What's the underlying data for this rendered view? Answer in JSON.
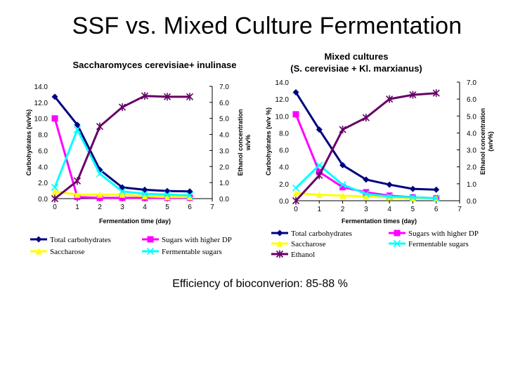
{
  "slide": {
    "title": "SSF vs. Mixed Culture Fermentation",
    "footer": "Efficiency of bioconverion: 85-88 %"
  },
  "colors": {
    "total_carbohydrates": "#000080",
    "sugars_higher_dp": "#ff00ff",
    "saccharose": "#ffff00",
    "fermentable_sugars": "#00ffff",
    "ethanol": "#660066"
  },
  "chart_data": [
    {
      "type": "line",
      "title": "Saccharomyces cerevisiae+ inulinase",
      "xlabel": "Fermentation time (day)",
      "ylabel_left": "Carbohydrates (w/v%)",
      "ylabel_right": "Ethanol concentration w/v%",
      "x_ticks": [
        "0",
        "1",
        "2",
        "3",
        "4",
        "5",
        "6",
        "7"
      ],
      "y_left_ticks": [
        "0.0",
        "2.0",
        "4.0",
        "6.0",
        "8.0",
        "10.0",
        "12.0",
        "14.0"
      ],
      "y_right_ticks": [
        "0.0",
        "1.0",
        "2.0",
        "3.0",
        "4.0",
        "5.0",
        "6.0",
        "7.0"
      ],
      "xlim": [
        0,
        7
      ],
      "y_left_lim": [
        0,
        14
      ],
      "y_right_lim": [
        0,
        7
      ],
      "legend_position": "bottom",
      "legend": [
        "Total carbohydrates",
        "Sugars with higher DP",
        "Saccharose",
        "Fermentable sugars"
      ],
      "series": [
        {
          "name": "Total carbohydrates",
          "axis": "left",
          "marker": "diamond",
          "x": [
            0,
            1,
            2,
            3,
            4,
            5,
            6
          ],
          "y": [
            12.7,
            9.2,
            3.6,
            1.4,
            1.1,
            0.95,
            0.9
          ]
        },
        {
          "name": "Sugars with higher DP",
          "axis": "left",
          "marker": "square",
          "x": [
            0,
            1,
            2,
            3,
            4,
            5,
            6
          ],
          "y": [
            10.0,
            0.2,
            0.1,
            0.1,
            0.1,
            0.1,
            0.1
          ]
        },
        {
          "name": "Saccharose",
          "axis": "left",
          "marker": "triangle",
          "x": [
            0,
            1,
            2,
            3,
            4,
            5,
            6
          ],
          "y": [
            0.9,
            0.5,
            0.5,
            0.5,
            0.3,
            0.2,
            0.2
          ]
        },
        {
          "name": "Fermentable sugars",
          "axis": "left",
          "marker": "x",
          "x": [
            0,
            1,
            2,
            3,
            4,
            5,
            6
          ],
          "y": [
            1.4,
            8.6,
            3.1,
            0.9,
            0.6,
            0.5,
            0.4
          ]
        },
        {
          "name": "Ethanol",
          "axis": "right",
          "marker": "star",
          "x": [
            0,
            1,
            2,
            3,
            4,
            5,
            6
          ],
          "y": [
            0.0,
            1.1,
            4.5,
            5.7,
            6.4,
            6.35,
            6.35
          ]
        }
      ]
    },
    {
      "type": "line",
      "title": "Mixed cultures (S. cerevisiae + Kl. marxianus)",
      "xlabel": "Fermentation times (day)",
      "ylabel_left": "Carbohydrates (w/v %)",
      "ylabel_right": "Ethanol concentration (w/v%)",
      "x_ticks": [
        "0",
        "1",
        "2",
        "3",
        "4",
        "5",
        "6",
        "7"
      ],
      "y_left_ticks": [
        "0.0",
        "2.0",
        "4.0",
        "6.0",
        "8.0",
        "10.0",
        "12.0",
        "14.0"
      ],
      "y_right_ticks": [
        "0.0",
        "1.0",
        "2.0",
        "3.0",
        "4.0",
        "5.0",
        "6.0",
        "7.0"
      ],
      "xlim": [
        0,
        7
      ],
      "y_left_lim": [
        0,
        14
      ],
      "y_right_lim": [
        0,
        7
      ],
      "legend_position": "bottom",
      "legend": [
        "Total carbohydrates",
        "Sugars with higher DP",
        "Saccharose",
        "Fermentable sugars",
        "Ethanol"
      ],
      "series": [
        {
          "name": "Total carbohydrates",
          "axis": "left",
          "marker": "diamond",
          "x": [
            0,
            1,
            2,
            3,
            4,
            5,
            6
          ],
          "y": [
            12.8,
            8.4,
            4.2,
            2.5,
            1.9,
            1.4,
            1.3
          ]
        },
        {
          "name": "Sugars with higher DP",
          "axis": "left",
          "marker": "square",
          "x": [
            0,
            1,
            2,
            3,
            4,
            5,
            6
          ],
          "y": [
            10.2,
            3.4,
            1.6,
            1.0,
            0.6,
            0.4,
            0.3
          ]
        },
        {
          "name": "Saccharose",
          "axis": "left",
          "marker": "triangle",
          "x": [
            0,
            1,
            2,
            3,
            4,
            5,
            6
          ],
          "y": [
            0.9,
            0.7,
            0.6,
            0.5,
            0.4,
            0.3,
            0.3
          ]
        },
        {
          "name": "Fermentable sugars",
          "axis": "left",
          "marker": "x",
          "x": [
            0,
            1,
            2,
            3,
            4,
            5,
            6
          ],
          "y": [
            1.5,
            4.2,
            1.9,
            0.8,
            0.5,
            0.4,
            0.3
          ]
        },
        {
          "name": "Ethanol",
          "axis": "right",
          "marker": "star",
          "x": [
            0,
            1,
            2,
            3,
            4,
            5,
            6
          ],
          "y": [
            0.0,
            1.5,
            4.2,
            4.9,
            6.0,
            6.25,
            6.35
          ]
        }
      ]
    }
  ]
}
